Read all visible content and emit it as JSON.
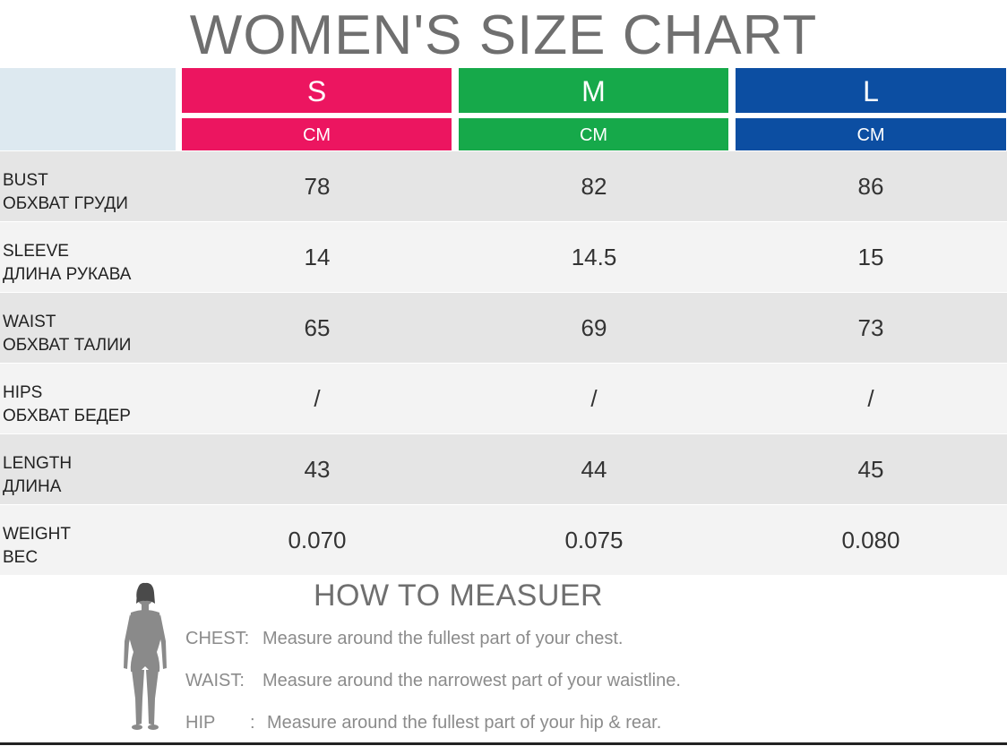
{
  "title": "WOMEN'S SIZE CHART",
  "colors": {
    "s": "#ec1560",
    "m": "#16a94a",
    "l": "#0c4ea2"
  },
  "sizes": [
    {
      "label": "S",
      "unit": "CM"
    },
    {
      "label": "M",
      "unit": "CM"
    },
    {
      "label": "L",
      "unit": "CM"
    }
  ],
  "rows": [
    {
      "en": "BUST",
      "ru": "ОБХВАТ ГРУДИ",
      "values": [
        "78",
        "82",
        "86"
      ]
    },
    {
      "en": "SLEEVE",
      "ru": "ДЛИНА РУКАВА",
      "values": [
        "14",
        "14.5",
        "15"
      ]
    },
    {
      "en": "WAIST",
      "ru": "ОБХВАТ ТАЛИИ",
      "values": [
        "65",
        "69",
        "73"
      ]
    },
    {
      "en": "HIPS",
      "ru": "ОБХВАТ БЕДЕР",
      "values": [
        "/",
        "/",
        "/"
      ]
    },
    {
      "en": "LENGTH",
      "ru": "ДЛИНА",
      "values": [
        "43",
        "44",
        "45"
      ]
    },
    {
      "en": "WEIGHT",
      "ru": "ВЕС",
      "values": [
        "0.070",
        "0.075",
        "0.080"
      ]
    }
  ],
  "measure": {
    "title": "HOW TO MEASUER",
    "icon": "woman-silhouette-icon",
    "items": [
      {
        "key": "CHEST:",
        "text": "Measure around the fullest part of your chest."
      },
      {
        "key": "WAIST:",
        "text": "Measure around the narrowest part of your waistline."
      },
      {
        "key": "HIP",
        "sep": ":",
        "text": "Measure around the fullest part of your hip & rear."
      }
    ]
  }
}
